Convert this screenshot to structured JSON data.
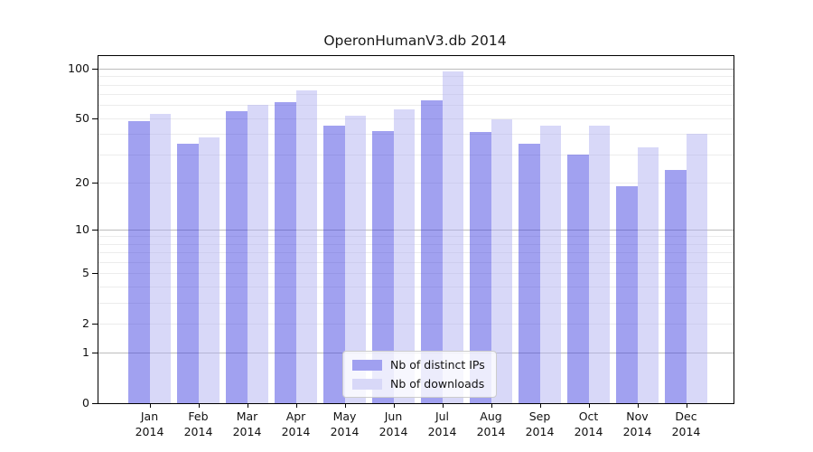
{
  "page": {
    "background": "#ffffff"
  },
  "chart_data": {
    "type": "bar",
    "title": "OperonHumanV3.db 2014",
    "categories": [
      "Jan 2014",
      "Feb 2014",
      "Mar 2014",
      "Apr 2014",
      "May 2014",
      "Jun 2014",
      "Jul 2014",
      "Aug 2014",
      "Sep 2014",
      "Oct 2014",
      "Nov 2014",
      "Dec 2014"
    ],
    "series": [
      {
        "name": "Nb of distinct IPs",
        "color": "#a0a0f0",
        "fill": "rgba(59,59,224,0.48)",
        "values": [
          48,
          35,
          55,
          63,
          45,
          42,
          64,
          41,
          35,
          30,
          19,
          24
        ]
      },
      {
        "name": "Nb of downloads",
        "color": "#d8d8f8",
        "fill": "rgba(174,174,240,0.48)",
        "values": [
          53,
          38,
          60,
          74,
          52,
          57,
          96,
          49,
          45,
          45,
          33,
          40
        ]
      }
    ],
    "xlabel": "",
    "ylabel": "",
    "yscale": "log10(value+1)",
    "ylim": [
      0,
      119
    ],
    "yticks": [
      100,
      50,
      20,
      10,
      5,
      2,
      1,
      0
    ],
    "grid": "horizontal",
    "grid_major": [
      1,
      10,
      100
    ],
    "grid_minor": [
      2,
      3,
      4,
      5,
      6,
      7,
      8,
      9,
      20,
      30,
      40,
      50,
      60,
      70,
      80,
      90
    ],
    "grid_major_color": "#bdbdbd",
    "grid_minor_color": "#ececec",
    "legend_position": "lower center"
  }
}
